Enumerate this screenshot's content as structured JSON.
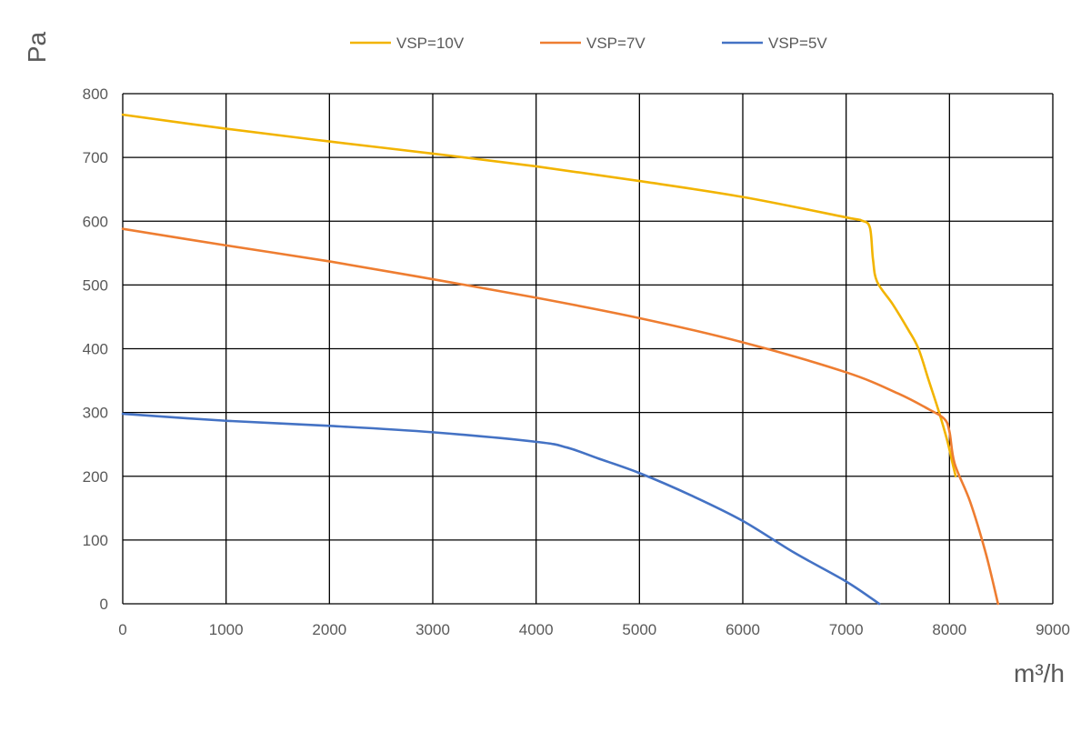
{
  "chart_data": {
    "type": "line",
    "ylabel": "Pa",
    "xlabel": "m³/h",
    "xlim": [
      0,
      9000
    ],
    "ylim": [
      0,
      800
    ],
    "x_ticks": [
      "0",
      "1000",
      "2000",
      "3000",
      "4000",
      "5000",
      "6000",
      "7000",
      "8000",
      "9000"
    ],
    "y_ticks": [
      "0",
      "100",
      "200",
      "300",
      "400",
      "500",
      "600",
      "700",
      "800"
    ],
    "grid": true,
    "legend_position": "top",
    "series": [
      {
        "name": "VSP=10V",
        "color": "#F2B400",
        "points": [
          [
            0,
            767
          ],
          [
            1000,
            745
          ],
          [
            2000,
            725
          ],
          [
            3000,
            706
          ],
          [
            4000,
            686
          ],
          [
            5000,
            663
          ],
          [
            6000,
            638
          ],
          [
            7000,
            606
          ],
          [
            7150,
            601
          ],
          [
            7230,
            590
          ],
          [
            7260,
            540
          ],
          [
            7300,
            505
          ],
          [
            7450,
            470
          ],
          [
            7600,
            430
          ],
          [
            7700,
            400
          ],
          [
            7800,
            350
          ],
          [
            7900,
            300
          ],
          [
            7980,
            255
          ],
          [
            8030,
            220
          ],
          [
            8060,
            200
          ]
        ]
      },
      {
        "name": "VSP=7V",
        "color": "#EE7D31",
        "points": [
          [
            0,
            588
          ],
          [
            1000,
            562
          ],
          [
            2000,
            537
          ],
          [
            3000,
            509
          ],
          [
            4000,
            480
          ],
          [
            5000,
            448
          ],
          [
            6000,
            410
          ],
          [
            7000,
            363
          ],
          [
            7500,
            330
          ],
          [
            7800,
            305
          ],
          [
            7950,
            290
          ],
          [
            8000,
            270
          ],
          [
            8050,
            220
          ],
          [
            8200,
            160
          ],
          [
            8350,
            80
          ],
          [
            8470,
            0
          ]
        ]
      },
      {
        "name": "VSP=5V",
        "color": "#4472C4",
        "points": [
          [
            0,
            298
          ],
          [
            1000,
            287
          ],
          [
            2000,
            279
          ],
          [
            3000,
            269
          ],
          [
            4000,
            254
          ],
          [
            4300,
            245
          ],
          [
            4600,
            228
          ],
          [
            5000,
            205
          ],
          [
            5500,
            170
          ],
          [
            6000,
            130
          ],
          [
            6500,
            80
          ],
          [
            7000,
            35
          ],
          [
            7320,
            0
          ]
        ]
      }
    ]
  }
}
